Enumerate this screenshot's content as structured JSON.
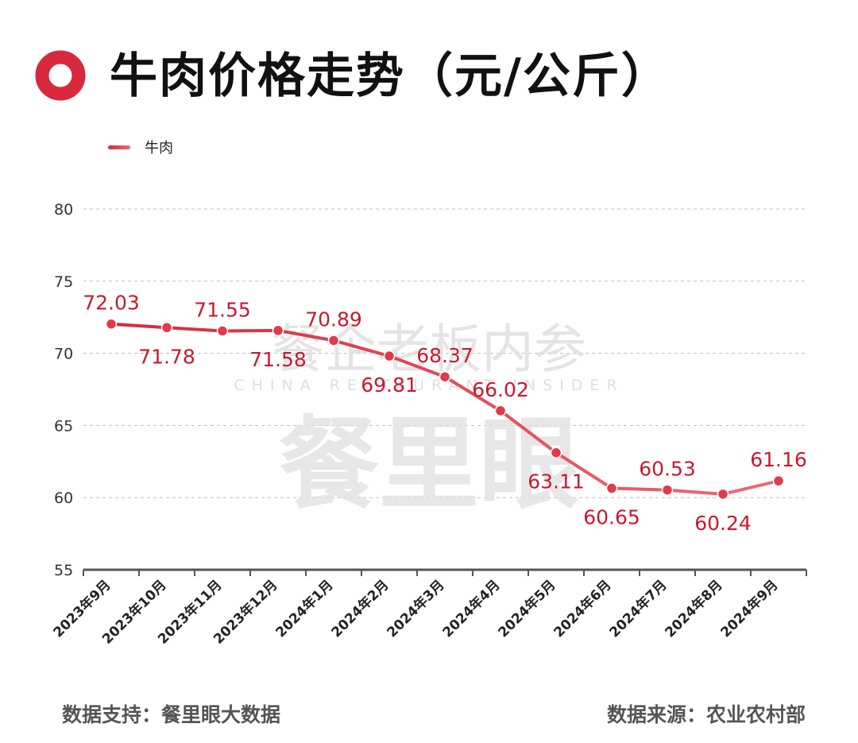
{
  "title": "牛肉价格走势（元/公斤）",
  "legend_label": "牛肉",
  "watermark": {
    "line1": "餐企老板内参",
    "line2": "CHINA RESTAURANT INSIDER",
    "line3": "餐里眼"
  },
  "colors": {
    "accent": "#d8283c",
    "accent_light": "#f06a78",
    "label": "#c8192e"
  },
  "footer_left": "数据支持：餐里眼大数据",
  "footer_right": "数据来源：农业农村部",
  "chart_data": {
    "type": "line",
    "title": "牛肉价格走势（元/公斤）",
    "categories": [
      "2023年9月",
      "2023年10月",
      "2023年11月",
      "2023年12月",
      "2024年1月",
      "2024年2月",
      "2024年3月",
      "2024年4月",
      "2024年5月",
      "2024年6月",
      "2024年7月",
      "2024年8月",
      "2024年9月"
    ],
    "series": [
      {
        "name": "牛肉",
        "values": [
          72.03,
          71.78,
          71.55,
          71.58,
          70.89,
          69.81,
          68.37,
          66.02,
          63.11,
          60.65,
          60.53,
          60.24,
          61.16
        ]
      }
    ],
    "ylim": [
      55,
      80
    ],
    "yticks": [
      55,
      60,
      65,
      70,
      75,
      80
    ],
    "grid": true,
    "legend": "top-left"
  }
}
